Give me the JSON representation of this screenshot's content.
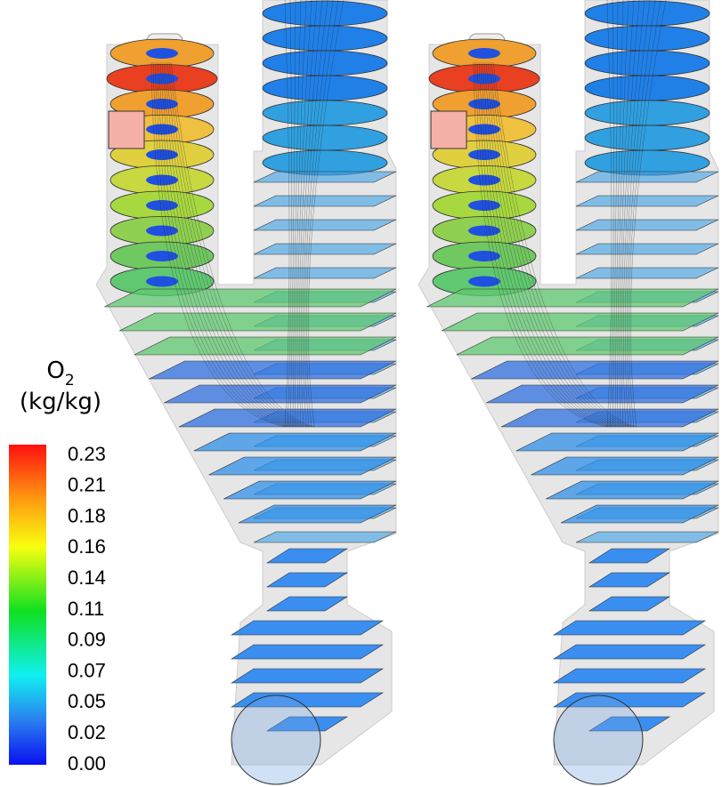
{
  "legend": {
    "title_symbol": "O",
    "title_subscript": "2",
    "title_unit": "(kg/kg)",
    "labels": [
      "0.23",
      "0.21",
      "0.18",
      "0.16",
      "0.14",
      "0.11",
      "0.09",
      "0.07",
      "0.05",
      "0.02",
      "0.00"
    ]
  }
}
